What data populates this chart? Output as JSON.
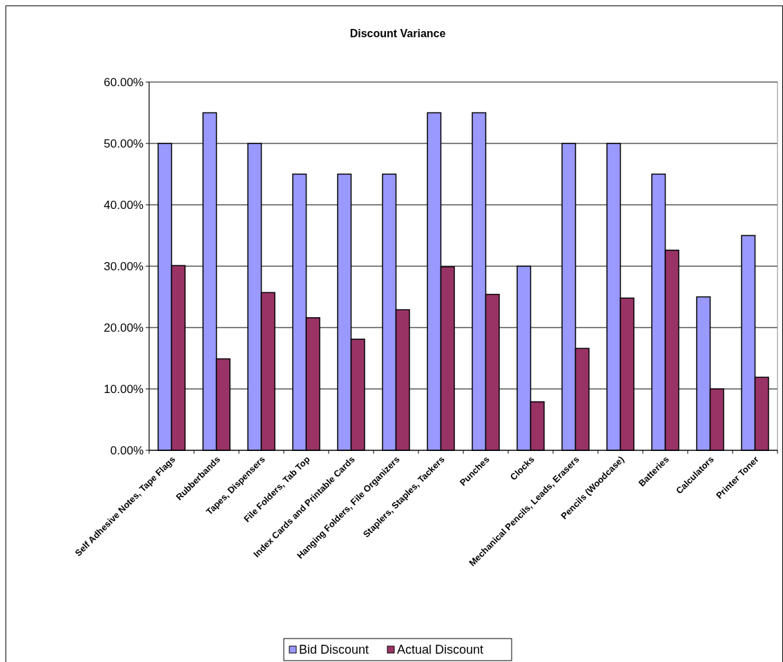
{
  "chart_data": {
    "type": "bar",
    "title": "Discount Variance",
    "categories": [
      "Self Adhesive Notes, Tape Flags",
      "Rubberbands",
      "Tapes, Dispensers",
      "File Folders, Tab Top",
      "Index Cards and Printable Cards",
      "Hanging Folders, File Organizers",
      "Staplers, Staples, Tackers",
      "Punches",
      "Clocks",
      "Mechanical Pencils, Leads, Erasers",
      "Pencils (Woodcase)",
      "Batteries",
      "Calculators",
      "Printer Toner"
    ],
    "series": [
      {
        "name": "Bid Discount",
        "color": "#9999ff",
        "values": [
          50,
          55,
          50,
          45,
          45,
          45,
          55,
          55,
          30,
          50,
          50,
          45,
          25,
          35
        ]
      },
      {
        "name": "Actual Discount",
        "color": "#993366",
        "values": [
          30.1,
          14.9,
          25.7,
          21.6,
          18.1,
          22.9,
          29.9,
          25.4,
          7.9,
          16.6,
          24.8,
          32.6,
          10.0,
          11.9
        ]
      }
    ],
    "ylim": [
      0,
      60
    ],
    "yticks": [
      {
        "value": 0,
        "label": "0.00%"
      },
      {
        "value": 10,
        "label": "10.00%"
      },
      {
        "value": 20,
        "label": "20.00%"
      },
      {
        "value": 30,
        "label": "30.00%"
      },
      {
        "value": 40,
        "label": "40.00%"
      },
      {
        "value": 50,
        "label": "50.00%"
      },
      {
        "value": 60,
        "label": "60.00%"
      }
    ],
    "grid": "y",
    "legend": "bottom"
  }
}
